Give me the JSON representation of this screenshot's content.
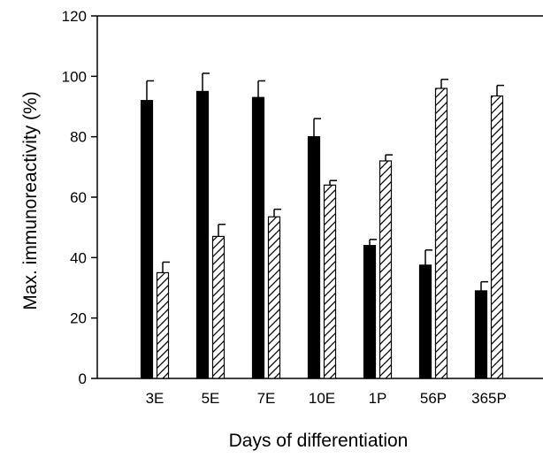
{
  "chart_data": {
    "type": "bar",
    "title": "",
    "xlabel": "Days of differentiation",
    "ylabel": "Max. immunoreactivity (%)",
    "ylim": [
      0,
      120
    ],
    "yticks": [
      0,
      20,
      40,
      60,
      80,
      100,
      120
    ],
    "categories": [
      "3E",
      "5E",
      "7E",
      "10E",
      "1P",
      "56P",
      "365P"
    ],
    "series": [
      {
        "fill": "solid-black",
        "color": "#000000",
        "values": [
          92,
          95,
          93,
          80,
          44,
          37.5,
          29
        ],
        "errors": [
          6.5,
          6,
          5.5,
          6,
          2,
          5,
          3
        ]
      },
      {
        "fill": "diagonal-hatch",
        "color": "#000000",
        "values": [
          35,
          47,
          53.5,
          64,
          72,
          96,
          93.5
        ],
        "errors": [
          3.5,
          4,
          2.5,
          1.5,
          2,
          3,
          3.5
        ]
      }
    ],
    "legend": "none",
    "grid": false
  }
}
